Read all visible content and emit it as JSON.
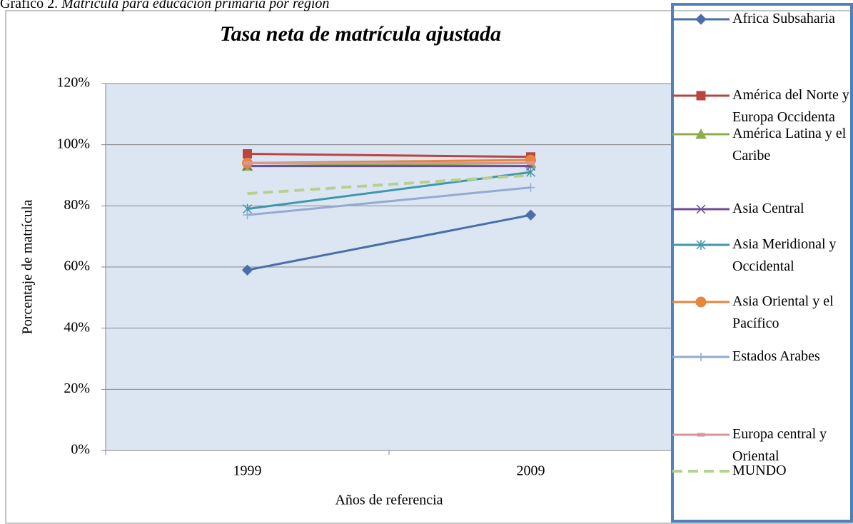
{
  "caption": {
    "label": "Gráfico 2.",
    "text": "Matrícula para educación primaria por región"
  },
  "chart_data": {
    "type": "line",
    "title": "Tasa neta de matrícula ajustada",
    "x_label": "Años de referencia",
    "y_label": "Porcentaje de matrícula",
    "categories": [
      "1999",
      "2009"
    ],
    "ylim": [
      0,
      120
    ],
    "yticks": [
      {
        "value": 0,
        "label": "0%"
      },
      {
        "value": 20,
        "label": "20%"
      },
      {
        "value": 40,
        "label": "40%"
      },
      {
        "value": 60,
        "label": "60%"
      },
      {
        "value": 80,
        "label": "80%"
      },
      {
        "value": 100,
        "label": "100%"
      },
      {
        "value": 120,
        "label": "120%"
      }
    ],
    "grid": true,
    "legend": "right",
    "series": [
      {
        "name": "Africa Subsaharia",
        "color": "#4a6fa8",
        "marker": "diamond",
        "values": [
          59,
          77
        ]
      },
      {
        "name": "América del Norte y Europa Occidenta",
        "color": "#b94440",
        "marker": "square",
        "values": [
          97,
          96
        ]
      },
      {
        "name": "América Latina y el Caribe",
        "color": "#8bae4a",
        "marker": "triangle",
        "values": [
          93,
          94
        ]
      },
      {
        "name": "Asia Central",
        "color": "#6e4d96",
        "marker": "x",
        "values": [
          93,
          93
        ]
      },
      {
        "name": "Asia Meridional y Occidental",
        "color": "#3e97ad",
        "marker": "star",
        "values": [
          79,
          91
        ]
      },
      {
        "name": "Asia Oriental y el Pacífico",
        "color": "#e8853a",
        "marker": "circle",
        "values": [
          94,
          95
        ]
      },
      {
        "name": "Estados Arabes",
        "color": "#94a9d3",
        "marker": "plus",
        "values": [
          77,
          86
        ]
      },
      {
        "name": "Europa central y Oriental",
        "color": "#d99694",
        "marker": "dash",
        "values": [
          94,
          94
        ]
      },
      {
        "name": "MUNDO",
        "color": "#b7d08f",
        "marker": "none",
        "dash": true,
        "values": [
          84,
          90
        ]
      }
    ]
  }
}
